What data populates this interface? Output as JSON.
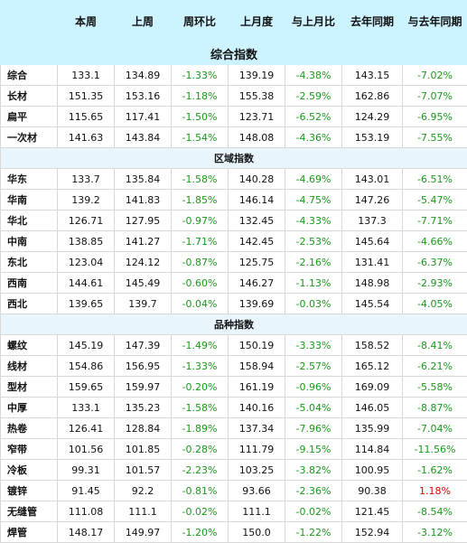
{
  "columns": [
    "",
    "本周",
    "上周",
    "周环比",
    "上月度",
    "与上月比",
    "去年同期",
    "与去年同期"
  ],
  "sections": [
    {
      "title": "综合指数",
      "rows": [
        {
          "name": "综合",
          "cells": [
            "133.1",
            "134.89",
            "-1.33%",
            "139.19",
            "-4.38%",
            "143.15",
            "-7.02%"
          ]
        },
        {
          "name": "长材",
          "cells": [
            "151.35",
            "153.16",
            "-1.18%",
            "155.38",
            "-2.59%",
            "162.86",
            "-7.07%"
          ]
        },
        {
          "name": "扁平",
          "cells": [
            "115.65",
            "117.41",
            "-1.50%",
            "123.71",
            "-6.52%",
            "124.29",
            "-6.95%"
          ]
        },
        {
          "name": "一次材",
          "cells": [
            "141.63",
            "143.84",
            "-1.54%",
            "148.08",
            "-4.36%",
            "153.19",
            "-7.55%"
          ]
        }
      ]
    },
    {
      "title": "区域指数",
      "rows": [
        {
          "name": "华东",
          "cells": [
            "133.7",
            "135.84",
            "-1.58%",
            "140.28",
            "-4.69%",
            "143.01",
            "-6.51%"
          ]
        },
        {
          "name": "华南",
          "cells": [
            "139.2",
            "141.83",
            "-1.85%",
            "146.14",
            "-4.75%",
            "147.26",
            "-5.47%"
          ]
        },
        {
          "name": "华北",
          "cells": [
            "126.71",
            "127.95",
            "-0.97%",
            "132.45",
            "-4.33%",
            "137.3",
            "-7.71%"
          ]
        },
        {
          "name": "中南",
          "cells": [
            "138.85",
            "141.27",
            "-1.71%",
            "142.45",
            "-2.53%",
            "145.64",
            "-4.66%"
          ]
        },
        {
          "name": "东北",
          "cells": [
            "123.04",
            "124.12",
            "-0.87%",
            "125.75",
            "-2.16%",
            "131.41",
            "-6.37%"
          ]
        },
        {
          "name": "西南",
          "cells": [
            "144.61",
            "145.49",
            "-0.60%",
            "146.27",
            "-1.13%",
            "148.98",
            "-2.93%"
          ]
        },
        {
          "name": "西北",
          "cells": [
            "139.65",
            "139.7",
            "-0.04%",
            "139.69",
            "-0.03%",
            "145.54",
            "-4.05%"
          ]
        }
      ]
    },
    {
      "title": "品种指数",
      "rows": [
        {
          "name": "螺纹",
          "cells": [
            "145.19",
            "147.39",
            "-1.49%",
            "150.19",
            "-3.33%",
            "158.52",
            "-8.41%"
          ]
        },
        {
          "name": "线材",
          "cells": [
            "154.86",
            "156.95",
            "-1.33%",
            "158.94",
            "-2.57%",
            "165.12",
            "-6.21%"
          ]
        },
        {
          "name": "型材",
          "cells": [
            "159.65",
            "159.97",
            "-0.20%",
            "161.19",
            "-0.96%",
            "169.09",
            "-5.58%"
          ]
        },
        {
          "name": "中厚",
          "cells": [
            "133.1",
            "135.23",
            "-1.58%",
            "140.16",
            "-5.04%",
            "146.05",
            "-8.87%"
          ]
        },
        {
          "name": "热卷",
          "cells": [
            "126.41",
            "128.84",
            "-1.89%",
            "137.34",
            "-7.96%",
            "135.99",
            "-7.04%"
          ]
        },
        {
          "name": "窄带",
          "cells": [
            "101.56",
            "101.85",
            "-0.28%",
            "111.79",
            "-9.15%",
            "114.84",
            "-11.56%"
          ]
        },
        {
          "name": "冷板",
          "cells": [
            "99.31",
            "101.57",
            "-2.23%",
            "103.25",
            "-3.82%",
            "100.95",
            "-1.62%"
          ]
        },
        {
          "name": "镀锌",
          "cells": [
            "91.45",
            "92.2",
            "-0.81%",
            "93.66",
            "-2.36%",
            "90.38",
            "1.18%"
          ]
        },
        {
          "name": "无缝管",
          "cells": [
            "111.08",
            "111.1",
            "-0.02%",
            "111.1",
            "-0.02%",
            "121.45",
            "-8.54%"
          ]
        },
        {
          "name": "焊管",
          "cells": [
            "148.17",
            "149.97",
            "-1.20%",
            "150.0",
            "-1.22%",
            "152.94",
            "-3.12%"
          ]
        }
      ]
    }
  ],
  "colors": {
    "header_bg": "#ccf3ff",
    "section_bg": "#e9f5fc",
    "negative": "#1a9a1a",
    "positive": "#e00000"
  }
}
